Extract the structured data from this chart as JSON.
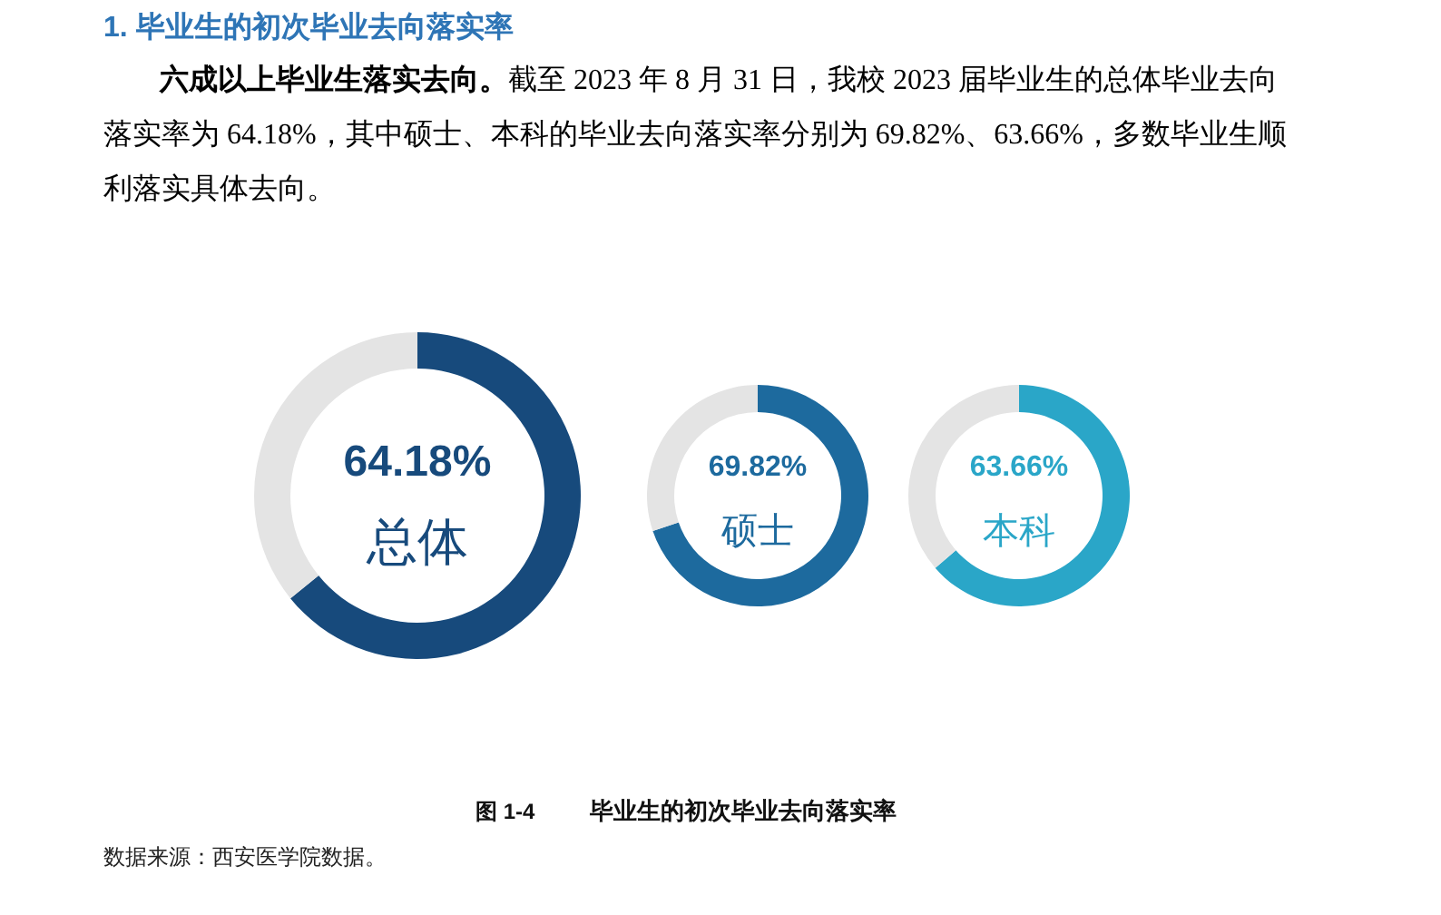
{
  "chart_data": [
    {
      "type": "other",
      "title": "1. 毕业生的初次毕业去向落实率",
      "annotations": [
        "六成以上毕业生落实去向。",
        "截至 2023 年 8 月 31 日，我校 2023 届毕业生的总体毕业去向",
        "落实率为 64.18%，其中硕士、本科的毕业去向落实率分别为 69.82%、63.66%，多数毕业生顺",
        "利落实具体去向。"
      ]
    },
    {
      "type": "donut",
      "categories": [
        "总体",
        null
      ],
      "values": [
        64.18,
        35.82
      ],
      "colors": [
        "#174a7c",
        "#e4e4e4"
      ],
      "value_labels": [
        "64.18%",
        null
      ]
    },
    {
      "type": "donut",
      "categories": [
        "硕士",
        null
      ],
      "values": [
        69.82,
        30.18
      ],
      "colors": [
        "#1d6a9e",
        "#e4e4e4"
      ],
      "value_labels": [
        "69.82%",
        null
      ]
    },
    {
      "type": "donut",
      "categories": [
        "本科",
        null
      ],
      "values": [
        63.66,
        36.34
      ],
      "colors": [
        "#2aa6c8",
        "#e4e4e4"
      ],
      "value_labels": [
        "63.66%",
        null
      ]
    },
    {
      "type": "other",
      "annotations": [
        "图 1-4",
        "毕业生的初次毕业去向落实率",
        "数据来源：西安医学院数据。"
      ]
    }
  ]
}
